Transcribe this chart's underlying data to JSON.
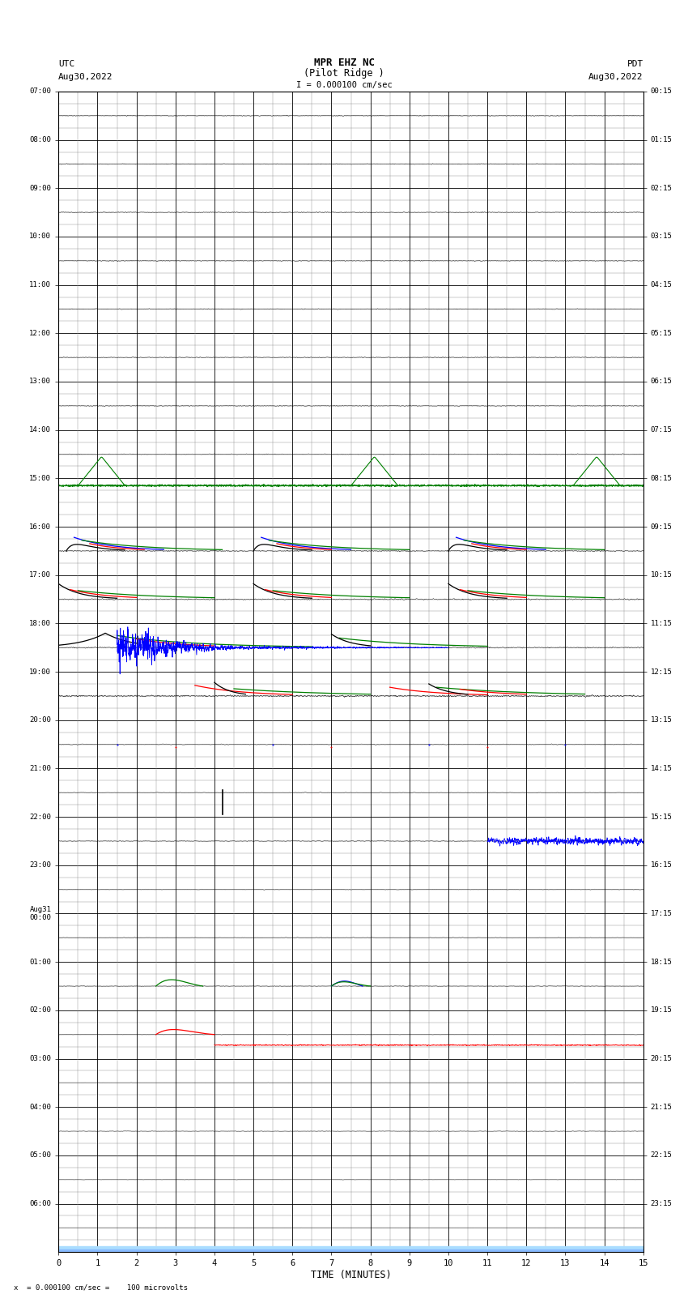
{
  "title_line1": "MPR EHZ NC",
  "title_line2": "(Pilot Ridge )",
  "title_scale": "I = 0.000100 cm/sec",
  "left_header_line1": "UTC",
  "left_header_line2": "Aug30,2022",
  "right_header_line1": "PDT",
  "right_header_line2": "Aug30,2022",
  "xlabel": "TIME (MINUTES)",
  "footnote": "x  = 0.000100 cm/sec =    100 microvolts",
  "left_yticks": [
    "07:00",
    "08:00",
    "09:00",
    "10:00",
    "11:00",
    "12:00",
    "13:00",
    "14:00",
    "15:00",
    "16:00",
    "17:00",
    "18:00",
    "19:00",
    "20:00",
    "21:00",
    "22:00",
    "23:00",
    "Aug31\n00:00",
    "01:00",
    "02:00",
    "03:00",
    "04:00",
    "05:00",
    "06:00"
  ],
  "right_yticks": [
    "00:15",
    "01:15",
    "02:15",
    "03:15",
    "04:15",
    "05:15",
    "06:15",
    "07:15",
    "08:15",
    "09:15",
    "10:15",
    "11:15",
    "12:15",
    "13:15",
    "14:15",
    "15:15",
    "16:15",
    "17:15",
    "18:15",
    "19:15",
    "20:15",
    "21:15",
    "22:15",
    "23:15"
  ],
  "num_rows": 24,
  "minutes_per_row": 15,
  "bg_color": "#ffffff",
  "grid_major_color": "#000000",
  "grid_minor_color": "#888888",
  "xticks": [
    0,
    1,
    2,
    3,
    4,
    5,
    6,
    7,
    8,
    9,
    10,
    11,
    12,
    13,
    14,
    15
  ]
}
